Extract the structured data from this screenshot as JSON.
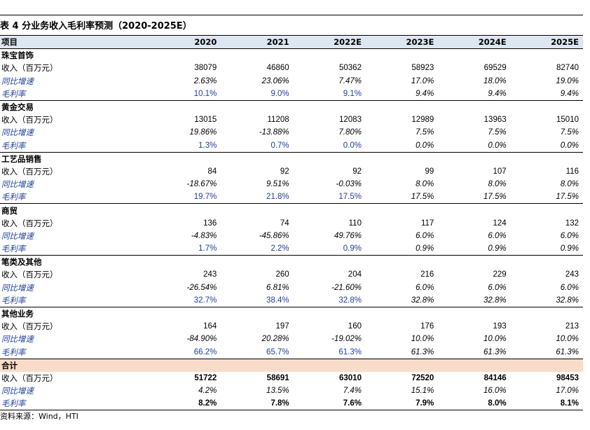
{
  "title": "表 4  分业务收入毛利率预测（2020-2025E）",
  "header": {
    "item": "项目",
    "years": [
      "2020",
      "2021",
      "2022E",
      "2023E",
      "2024E",
      "2025E"
    ]
  },
  "row_labels": {
    "revenue": "收入（百万元）",
    "growth": "同比增速",
    "margin": "毛利率"
  },
  "segments": [
    {
      "name": "珠宝首饰",
      "revenue": [
        "38079",
        "46860",
        "50362",
        "58923",
        "69529",
        "82740"
      ],
      "growth": [
        "2.63%",
        "23.06%",
        "7.47%",
        "17.0%",
        "18.0%",
        "19.0%"
      ],
      "margin": [
        "10.1%",
        "9.0%",
        "9.1%",
        "9.4%",
        "9.4%",
        "9.4%"
      ]
    },
    {
      "name": "黄金交易",
      "revenue": [
        "13015",
        "11208",
        "12083",
        "12989",
        "13963",
        "15010"
      ],
      "growth": [
        "19.86%",
        "-13.88%",
        "7.80%",
        "7.5%",
        "7.5%",
        "7.5%"
      ],
      "margin": [
        "1.3%",
        "0.7%",
        "0.0%",
        "0.0%",
        "0.0%",
        "0.0%"
      ]
    },
    {
      "name": "工艺品销售",
      "revenue": [
        "84",
        "92",
        "92",
        "99",
        "107",
        "116"
      ],
      "growth": [
        "-18.67%",
        "9.51%",
        "-0.03%",
        "8.0%",
        "8.0%",
        "8.0%"
      ],
      "margin": [
        "19.7%",
        "21.8%",
        "17.5%",
        "17.5%",
        "17.5%",
        "17.5%"
      ]
    },
    {
      "name": "商贸",
      "revenue": [
        "136",
        "74",
        "110",
        "117",
        "124",
        "132"
      ],
      "growth": [
        "-4.83%",
        "-45.86%",
        "49.76%",
        "6.0%",
        "6.0%",
        "6.0%"
      ],
      "margin": [
        "1.7%",
        "2.2%",
        "0.9%",
        "0.9%",
        "0.9%",
        "0.9%"
      ]
    },
    {
      "name": "笔类及其他",
      "revenue": [
        "243",
        "260",
        "204",
        "216",
        "229",
        "243"
      ],
      "growth": [
        "-26.54%",
        "6.81%",
        "-21.60%",
        "6.0%",
        "6.0%",
        "6.0%"
      ],
      "margin": [
        "32.7%",
        "38.4%",
        "32.8%",
        "32.8%",
        "32.8%",
        "32.8%"
      ]
    },
    {
      "name": "其他业务",
      "revenue": [
        "164",
        "197",
        "160",
        "176",
        "193",
        "213"
      ],
      "growth": [
        "-84.90%",
        "20.28%",
        "-19.02%",
        "10.0%",
        "10.0%",
        "10.0%"
      ],
      "margin": [
        "66.2%",
        "65.7%",
        "61.3%",
        "61.3%",
        "61.3%",
        "61.3%"
      ]
    }
  ],
  "total": {
    "name": "合计",
    "revenue": [
      "51722",
      "58691",
      "63010",
      "72520",
      "84146",
      "98453"
    ],
    "growth": [
      "4.2%",
      "13.5%",
      "7.4%",
      "15.1%",
      "16.0%",
      "17.0%"
    ],
    "margin": [
      "8.2%",
      "7.8%",
      "7.6%",
      "7.9%",
      "8.0%",
      "8.1%"
    ]
  },
  "source": "资料来源：Wind，HTI"
}
